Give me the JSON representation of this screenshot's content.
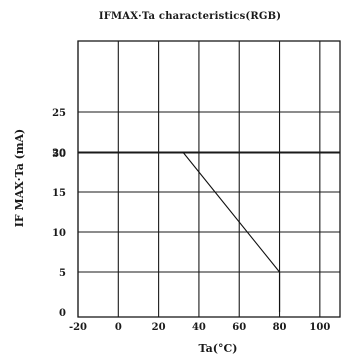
{
  "chart_data": {
    "type": "line",
    "title": "IFMAX·Ta characteristics(RGB)",
    "xlabel": "Ta(°C)",
    "ylabel": "IF MAX·Ta (mA)",
    "xlim": [
      -20,
      110
    ],
    "ylim": [
      0,
      55
    ],
    "x_ticks": [
      -20,
      0,
      20,
      40,
      60,
      80,
      100
    ],
    "x_tick_labels": [
      "-20",
      "0",
      "20",
      "40",
      "60",
      "80",
      "100"
    ],
    "y_ticks": [
      0,
      5,
      10,
      15,
      20,
      25,
      50
    ],
    "y_tick_labels": [
      "0",
      "5",
      "10",
      "15",
      "20",
      "25",
      "50"
    ],
    "grid": true,
    "series": [
      {
        "x": [
          32,
          80,
          80
        ],
        "y": [
          20,
          5,
          0
        ]
      }
    ]
  }
}
